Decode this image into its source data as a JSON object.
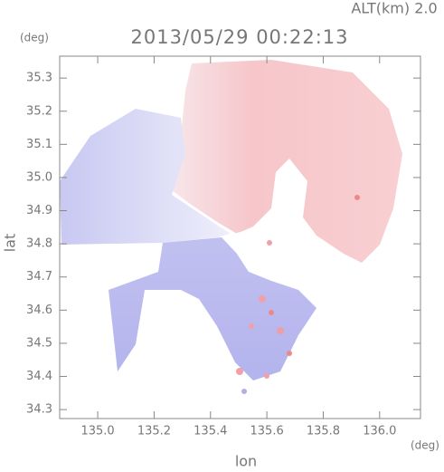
{
  "chart_data": {
    "type": "map",
    "title": "2013/05/29 00:22:13",
    "subtitle": "ALT(km) 2.0",
    "x_label": "lon",
    "y_label": "lat",
    "x_unit": "(deg)",
    "y_unit": "(deg)",
    "xlim": [
      134.865,
      136.145
    ],
    "ylim": [
      34.273,
      35.366
    ],
    "xticks": [
      {
        "value": 135,
        "label": "135.0"
      },
      135.2,
      135.4,
      135.6,
      135.8,
      {
        "value": 136,
        "label": "136.0"
      }
    ],
    "yticks": [
      34.3,
      34.4,
      34.5,
      34.6,
      34.7,
      34.8,
      34.9,
      {
        "value": 35,
        "label": "35.0"
      },
      35.1,
      35.2,
      35.3
    ]
  }
}
